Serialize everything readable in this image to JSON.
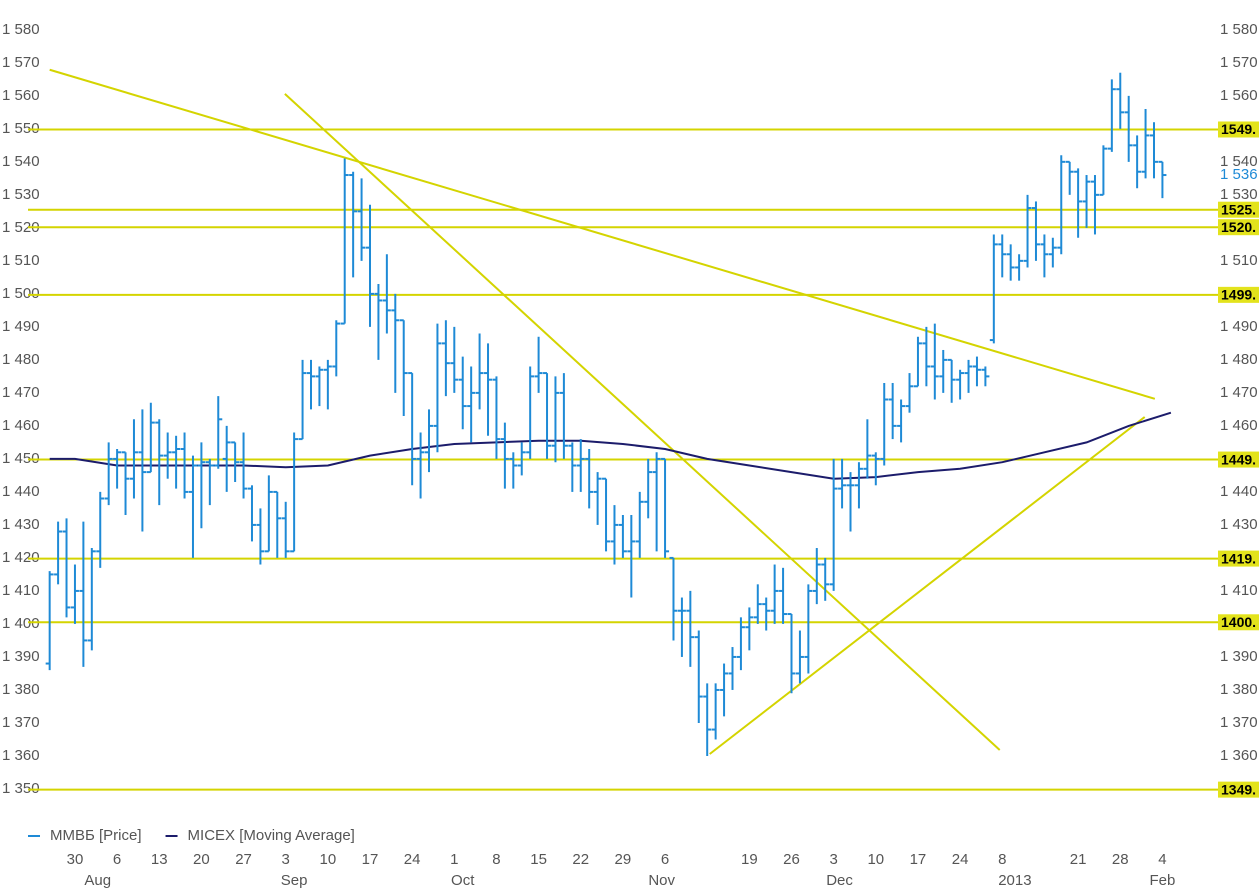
{
  "chart_data": {
    "type": "ohlc",
    "xlim": [
      -5.57,
      135
    ],
    "ylim": [
      1340.6,
      1586
    ],
    "xticks": [
      {
        "value": 0,
        "label": "30"
      },
      {
        "value": 5,
        "label": "6"
      },
      {
        "value": 10,
        "label": "13"
      },
      {
        "value": 15,
        "label": "20"
      },
      {
        "value": 20,
        "label": "27"
      },
      {
        "value": 25,
        "label": "3"
      },
      {
        "value": 30,
        "label": "10"
      },
      {
        "value": 35,
        "label": "17"
      },
      {
        "value": 40,
        "label": "24"
      },
      {
        "value": 45,
        "label": "1"
      },
      {
        "value": 50,
        "label": "8"
      },
      {
        "value": 55,
        "label": "15"
      },
      {
        "value": 60,
        "label": "22"
      },
      {
        "value": 65,
        "label": "29"
      },
      {
        "value": 70,
        "label": "6"
      },
      {
        "value": 80,
        "label": "19"
      },
      {
        "value": 85,
        "label": "26"
      },
      {
        "value": 90,
        "label": "3"
      },
      {
        "value": 95,
        "label": "10"
      },
      {
        "value": 100,
        "label": "17"
      },
      {
        "value": 105,
        "label": "24"
      },
      {
        "value": 110,
        "label": "8"
      },
      {
        "value": 119,
        "label": "21"
      },
      {
        "value": 124,
        "label": "28"
      },
      {
        "value": 129,
        "label": "4"
      }
    ],
    "month_labels": [
      {
        "value": 2.7,
        "label": "Aug"
      },
      {
        "value": 26,
        "label": "Sep"
      },
      {
        "value": 46,
        "label": "Oct"
      },
      {
        "value": 69.6,
        "label": "Nov"
      },
      {
        "value": 90.7,
        "label": "Dec"
      },
      {
        "value": 111.5,
        "label": "2013"
      },
      {
        "value": 129,
        "label": "Feb"
      }
    ],
    "yticks": [
      {
        "value": 1350,
        "label": "1 350"
      },
      {
        "value": 1360,
        "label": "1 360"
      },
      {
        "value": 1370,
        "label": "1 370"
      },
      {
        "value": 1380,
        "label": "1 380"
      },
      {
        "value": 1390,
        "label": "1 390"
      },
      {
        "value": 1400,
        "label": "1 400"
      },
      {
        "value": 1410,
        "label": "1 410"
      },
      {
        "value": 1420,
        "label": "1 420"
      },
      {
        "value": 1430,
        "label": "1 430"
      },
      {
        "value": 1440,
        "label": "1 440"
      },
      {
        "value": 1450,
        "label": "1 450"
      },
      {
        "value": 1460,
        "label": "1 460"
      },
      {
        "value": 1470,
        "label": "1 470"
      },
      {
        "value": 1480,
        "label": "1 480"
      },
      {
        "value": 1490,
        "label": "1 490"
      },
      {
        "value": 1500,
        "label": "1 500"
      },
      {
        "value": 1510,
        "label": "1 510"
      },
      {
        "value": 1520,
        "label": "1 520"
      },
      {
        "value": 1530,
        "label": "1 530"
      },
      {
        "value": 1540,
        "label": "1 540"
      },
      {
        "value": 1550,
        "label": "1 550"
      },
      {
        "value": 1560,
        "label": "1 560"
      },
      {
        "value": 1570,
        "label": "1 570"
      },
      {
        "value": 1580,
        "label": "1 580"
      }
    ],
    "levels_color": "#d4d400",
    "levels": [
      {
        "value": 1549.8,
        "label": "1549."
      },
      {
        "value": 1525.5,
        "label": "1525."
      },
      {
        "value": 1520.2,
        "label": "1520."
      },
      {
        "value": 1499.7,
        "label": "1499."
      },
      {
        "value": 1449.8,
        "label": "1449."
      },
      {
        "value": 1419.8,
        "label": "1419."
      },
      {
        "value": 1400.5,
        "label": "1400."
      },
      {
        "value": 1349.8,
        "label": "1349."
      }
    ],
    "trendlines": [
      {
        "x": [
          -3,
          128.1
        ],
        "values": [
          1567.9,
          1468.2
        ]
      },
      {
        "x": [
          24.9,
          109.7
        ],
        "values": [
          1560.6,
          1361.8
        ]
      },
      {
        "x": [
          75.3,
          126.9
        ],
        "values": [
          1360.6,
          1462.7
        ]
      }
    ],
    "last_price": {
      "value": 1536,
      "label": "1 536"
    },
    "series": [
      {
        "name": "ММВБ [Price]",
        "color": "#1e8ad6",
        "x": [
          -3,
          -2,
          -1,
          0,
          1,
          2,
          3,
          4,
          5,
          6,
          7,
          8,
          9,
          10,
          11,
          12,
          13,
          14,
          15,
          16,
          17,
          18,
          19,
          20,
          21,
          22,
          23,
          24,
          25,
          26,
          27,
          28,
          29,
          30,
          31,
          32,
          33,
          34,
          35,
          36,
          37,
          38,
          39,
          40,
          41,
          42,
          43,
          44,
          45,
          46,
          47,
          48,
          49,
          50,
          51,
          52,
          53,
          54,
          55,
          56,
          57,
          58,
          59,
          60,
          61,
          62,
          63,
          64,
          65,
          66,
          67,
          68,
          69,
          70,
          71,
          72,
          73,
          74,
          75,
          76,
          77,
          78,
          79,
          80,
          81,
          82,
          83,
          84,
          85,
          86,
          87,
          88,
          89,
          90,
          91,
          92,
          93,
          94,
          95,
          96,
          97,
          98,
          99,
          100,
          101,
          102,
          103,
          104,
          105,
          106,
          107,
          108,
          109,
          110,
          111,
          112,
          113,
          114,
          115,
          116,
          117,
          118,
          119,
          120,
          121,
          122,
          123,
          124,
          125,
          126,
          127,
          128,
          129
        ],
        "open": [
          1388,
          1415,
          1428,
          1405,
          1410,
          1395,
          1422,
          1438,
          1450,
          1452,
          1444,
          1452,
          1446,
          1461,
          1451,
          1452,
          1453,
          1440,
          1448,
          1449,
          1448,
          1450,
          1455,
          1449,
          1441,
          1430,
          1422,
          1440,
          1432,
          1422,
          1456,
          1476,
          1475,
          1477,
          1478,
          1491,
          1536,
          1525,
          1514,
          1500,
          1498,
          1495,
          1492,
          1476,
          1450,
          1452,
          1460,
          1485,
          1479,
          1474,
          1466,
          1470,
          1476,
          1474,
          1456,
          1450,
          1448,
          1452,
          1475,
          1476,
          1454,
          1470,
          1454,
          1448,
          1450,
          1440,
          1444,
          1425,
          1430,
          1422,
          1425,
          1437,
          1446,
          1450,
          1420,
          1404,
          1404,
          1396,
          1378,
          1368,
          1380,
          1385,
          1390,
          1399,
          1402,
          1406,
          1404,
          1410,
          1403,
          1385,
          1390,
          1410,
          1418,
          1412,
          1441,
          1442,
          1442,
          1447,
          1451,
          1450,
          1468,
          1460,
          1466,
          1472,
          1485,
          1478,
          1475,
          1480,
          1474,
          1476,
          1478,
          1477,
          1486,
          1515,
          1512,
          1508,
          1510,
          1526,
          1515,
          1512,
          1514,
          1540,
          1537,
          1528,
          1534,
          1530,
          1544,
          1562,
          1555,
          1545,
          1537,
          1548,
          1540
        ],
        "high": [
          1416,
          1431,
          1432,
          1418,
          1431,
          1423,
          1440,
          1455,
          1453,
          1452,
          1462,
          1465,
          1467,
          1462,
          1458,
          1457,
          1458,
          1451,
          1455,
          1450,
          1469,
          1460,
          1455,
          1458,
          1442,
          1435,
          1445,
          1440,
          1437,
          1458,
          1480,
          1480,
          1478,
          1480,
          1492,
          1541,
          1537,
          1535,
          1527,
          1503,
          1512,
          1500,
          1492,
          1476,
          1458,
          1465,
          1491,
          1492,
          1490,
          1481,
          1478,
          1488,
          1485,
          1475,
          1461,
          1452,
          1455,
          1478,
          1487,
          1476,
          1475,
          1476,
          1455,
          1456,
          1453,
          1446,
          1444,
          1436,
          1433,
          1433,
          1440,
          1450,
          1452,
          1450,
          1420,
          1408,
          1410,
          1398,
          1382,
          1382,
          1388,
          1393,
          1402,
          1405,
          1412,
          1408,
          1418,
          1417,
          1403,
          1398,
          1412,
          1423,
          1420,
          1450,
          1450,
          1446,
          1449,
          1462,
          1452,
          1473,
          1473,
          1468,
          1476,
          1487,
          1490,
          1491,
          1483,
          1480,
          1477,
          1480,
          1481,
          1478,
          1518,
          1518,
          1515,
          1512,
          1530,
          1528,
          1518,
          1517,
          1542,
          1540,
          1538,
          1536,
          1536,
          1545,
          1565,
          1567,
          1560,
          1548,
          1556,
          1552,
          1540
        ],
        "low": [
          1386,
          1412,
          1402,
          1400,
          1387,
          1392,
          1417,
          1436,
          1441,
          1433,
          1438,
          1428,
          1446,
          1436,
          1444,
          1441,
          1438,
          1420,
          1429,
          1436,
          1447,
          1440,
          1443,
          1438,
          1425,
          1418,
          1422,
          1420,
          1420,
          1422,
          1456,
          1465,
          1466,
          1465,
          1475,
          1491,
          1505,
          1510,
          1490,
          1480,
          1488,
          1470,
          1463,
          1442,
          1438,
          1446,
          1452,
          1469,
          1470,
          1459,
          1455,
          1465,
          1457,
          1450,
          1441,
          1441,
          1445,
          1450,
          1470,
          1450,
          1449,
          1450,
          1440,
          1440,
          1435,
          1430,
          1422,
          1418,
          1420,
          1408,
          1420,
          1432,
          1422,
          1420,
          1395,
          1390,
          1387,
          1370,
          1360,
          1365,
          1372,
          1380,
          1386,
          1392,
          1400,
          1398,
          1400,
          1400,
          1379,
          1382,
          1385,
          1406,
          1407,
          1410,
          1435,
          1428,
          1435,
          1444,
          1442,
          1448,
          1456,
          1455,
          1464,
          1472,
          1472,
          1468,
          1470,
          1467,
          1468,
          1470,
          1472,
          1472,
          1485,
          1505,
          1504,
          1504,
          1508,
          1510,
          1505,
          1508,
          1512,
          1530,
          1517,
          1520,
          1518,
          1530,
          1543,
          1550,
          1540,
          1532,
          1535,
          1535,
          1529
        ],
        "close": [
          1415,
          1428,
          1405,
          1410,
          1395,
          1422,
          1438,
          1450,
          1452,
          1444,
          1452,
          1446,
          1461,
          1451,
          1452,
          1453,
          1440,
          1448,
          1449,
          1448,
          1462,
          1455,
          1449,
          1441,
          1430,
          1422,
          1440,
          1432,
          1422,
          1456,
          1476,
          1475,
          1477,
          1478,
          1491,
          1536,
          1525,
          1514,
          1500,
          1498,
          1495,
          1492,
          1476,
          1450,
          1452,
          1460,
          1485,
          1479,
          1474,
          1466,
          1470,
          1476,
          1474,
          1456,
          1450,
          1448,
          1452,
          1475,
          1476,
          1454,
          1470,
          1454,
          1448,
          1450,
          1440,
          1444,
          1425,
          1430,
          1422,
          1425,
          1437,
          1446,
          1450,
          1422,
          1404,
          1404,
          1396,
          1378,
          1368,
          1380,
          1385,
          1390,
          1399,
          1402,
          1406,
          1404,
          1410,
          1403,
          1385,
          1390,
          1410,
          1418,
          1412,
          1441,
          1442,
          1442,
          1447,
          1451,
          1450,
          1468,
          1460,
          1466,
          1472,
          1485,
          1478,
          1475,
          1480,
          1474,
          1476,
          1478,
          1477,
          1475,
          1515,
          1512,
          1508,
          1510,
          1526,
          1515,
          1512,
          1514,
          1540,
          1537,
          1528,
          1534,
          1530,
          1544,
          1562,
          1555,
          1545,
          1537,
          1548,
          1540,
          1536
        ]
      },
      {
        "name": "MICEX [Moving Average]",
        "type": "line",
        "color": "#1c1c6b",
        "x": [
          -3,
          0,
          5,
          10,
          15,
          20,
          25,
          30,
          35,
          40,
          45,
          50,
          55,
          60,
          65,
          70,
          75,
          80,
          85,
          90,
          95,
          100,
          105,
          110,
          115,
          120,
          125,
          130
        ],
        "values": [
          1450,
          1450,
          1448,
          1448,
          1448,
          1448,
          1447.5,
          1448,
          1451,
          1453,
          1454.5,
          1455,
          1455.5,
          1455.5,
          1454.5,
          1453,
          1450,
          1448,
          1446,
          1444,
          1444.5,
          1446,
          1447,
          1449,
          1452,
          1455,
          1460,
          1464
        ]
      }
    ]
  }
}
